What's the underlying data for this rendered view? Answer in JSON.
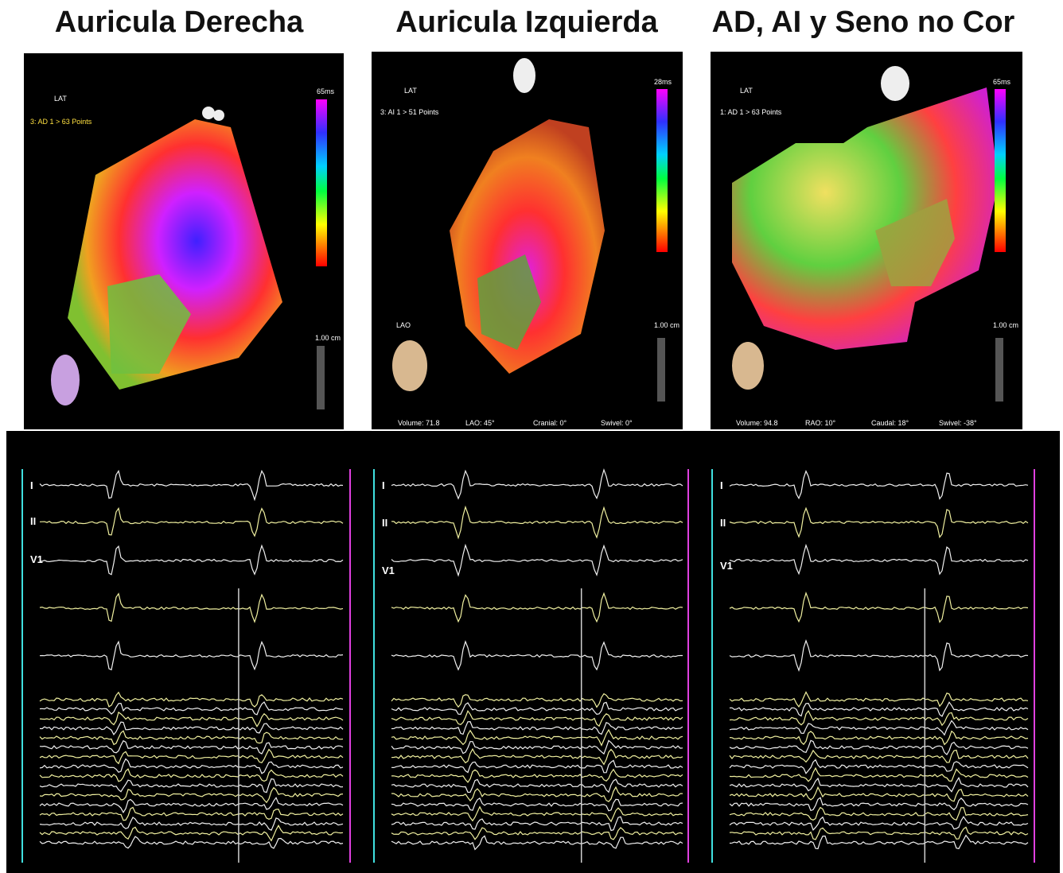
{
  "titles": [
    "Auricula Derecha",
    "Auricula Izquierda",
    "AD, AI y Seno no Cor"
  ],
  "panels": [
    {
      "map": {
        "mode": "LAT",
        "scale_max": "65ms",
        "map_label": "3: AD 1 > 63 Points",
        "scale_bar": "1.00 cm"
      },
      "egm": {
        "labels": [
          "I",
          "II",
          "V1"
        ]
      }
    },
    {
      "map": {
        "mode": "LAT",
        "scale_max": "28ms",
        "map_label": "3: AI 1 > 51 Points",
        "view": "LAO",
        "scale_bar": "1.00 cm",
        "status": [
          "Volume: 71.8",
          "LAO: 45°",
          "Cranial: 0°",
          "Swivel: 0°"
        ]
      },
      "egm": {
        "labels": [
          "I",
          "II",
          "V1"
        ]
      }
    },
    {
      "map": {
        "mode": "LAT",
        "scale_max": "65ms",
        "map_label": "1: AD 1 > 63 Points",
        "scale_bar": "1.00 cm",
        "status": [
          "Volume: 94.8",
          "RAO: 10°",
          "Caudal: 18°",
          "Swivel: -38°"
        ]
      },
      "egm": {
        "labels": [
          "I",
          "II",
          "V1"
        ]
      }
    }
  ]
}
